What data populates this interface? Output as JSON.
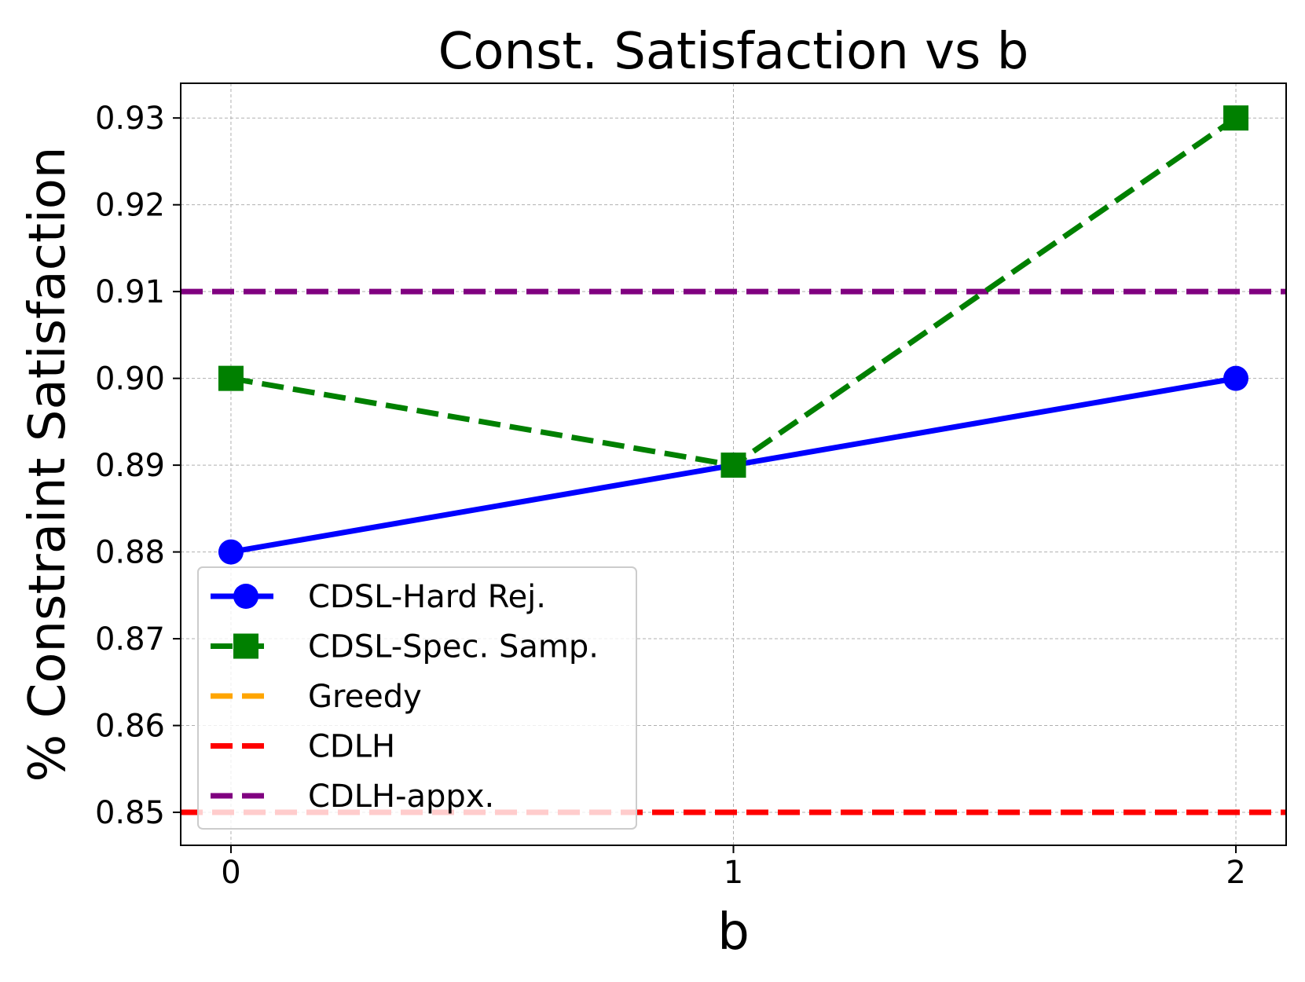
{
  "chart_data": {
    "type": "line",
    "title": "Const. Satisfaction vs b",
    "xlabel": "b",
    "ylabel": "% Constraint Satisfaction",
    "x": [
      0,
      1,
      2
    ],
    "xlim": [
      -0.1,
      2.1
    ],
    "ylim": [
      0.8462,
      0.934
    ],
    "xticks": [
      0,
      1,
      2
    ],
    "xtick_labels": [
      "0",
      "1",
      "2"
    ],
    "yticks": [
      0.85,
      0.86,
      0.87,
      0.88,
      0.89,
      0.9,
      0.91,
      0.92,
      0.93
    ],
    "ytick_labels": [
      "0.85",
      "0.86",
      "0.87",
      "0.88",
      "0.89",
      "0.90",
      "0.91",
      "0.92",
      "0.93"
    ],
    "grid": true,
    "legend_position": "lower-left",
    "series": [
      {
        "name": "CDSL-Hard Rej.",
        "values": [
          0.88,
          0.89,
          0.9
        ],
        "color": "#0000ff",
        "style": "solid",
        "marker": "circle"
      },
      {
        "name": "CDSL-Spec. Samp.",
        "values": [
          0.9,
          0.89,
          0.93
        ],
        "color": "#008000",
        "style": "dashed",
        "marker": "square"
      }
    ],
    "reference_lines": [
      {
        "name": "Greedy",
        "value": 0.85,
        "color": "#ffa500",
        "style": "dashed"
      },
      {
        "name": "CDLH",
        "value": 0.85,
        "color": "#ff0000",
        "style": "dashed"
      },
      {
        "name": "CDLH-appx.",
        "value": 0.91,
        "color": "#800080",
        "style": "dashed"
      }
    ]
  }
}
